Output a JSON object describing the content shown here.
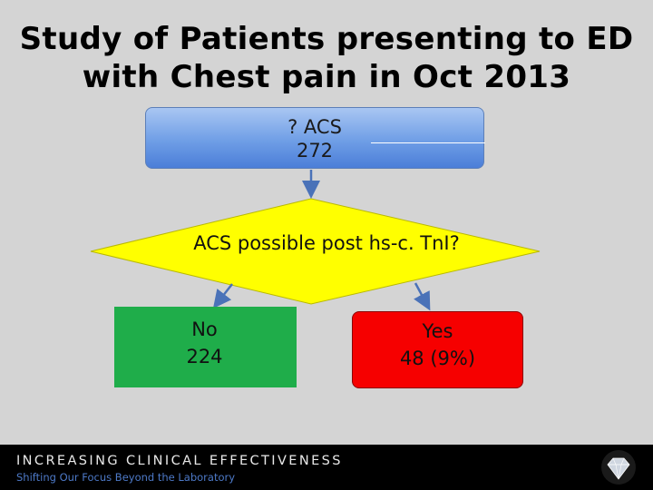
{
  "title": {
    "line1": "Study of Patients presenting to ED",
    "line2": "with Chest pain in Oct 2013"
  },
  "nodes": {
    "acs": {
      "label": "? ACS",
      "value": "272"
    },
    "decision": {
      "label": "ACS possible post hs-c. TnI?"
    },
    "no": {
      "label": "No",
      "value": "224"
    },
    "yes": {
      "label": "Yes",
      "value": "48 (9%)"
    }
  },
  "footer": {
    "main": "INCREASING CLINICAL EFFECTIVENESS",
    "sub": "Shifting Our Focus Beyond the Laboratory"
  },
  "colors": {
    "acs_box": "#6f9ee6",
    "decision_fill": "#ffff00",
    "no_box": "#1fad4a",
    "yes_box": "#f60000",
    "arrow": "#4a72b8"
  }
}
